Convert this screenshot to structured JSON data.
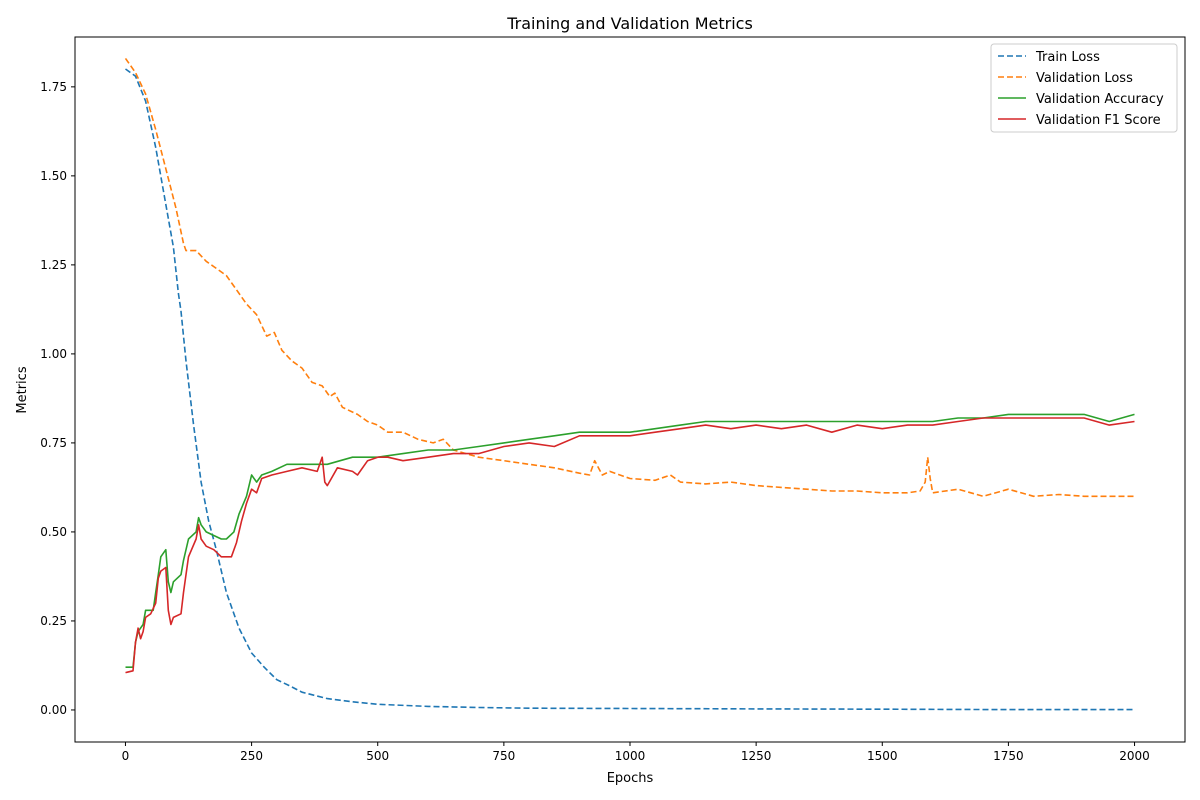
{
  "chart_data": {
    "type": "line",
    "title": "Training and Validation Metrics",
    "xlabel": "Epochs",
    "ylabel": "Metrics",
    "xlim": [
      -100,
      2100
    ],
    "ylim": [
      -0.09,
      1.89
    ],
    "x_ticks": [
      0,
      250,
      500,
      750,
      1000,
      1250,
      1500,
      1750,
      2000
    ],
    "x_tick_labels": [
      "0",
      "250",
      "500",
      "750",
      "1000",
      "1250",
      "1500",
      "1750",
      "2000"
    ],
    "y_ticks": [
      0.0,
      0.25,
      0.5,
      0.75,
      1.0,
      1.25,
      1.5,
      1.75
    ],
    "y_tick_labels": [
      "0.00",
      "0.25",
      "0.50",
      "0.75",
      "1.00",
      "1.25",
      "1.50",
      "1.75"
    ],
    "grid": false,
    "legend_position": "top-right",
    "series": [
      {
        "name": "Train Loss",
        "color": "#1f77b4",
        "dash": "dashed",
        "points": [
          [
            0,
            1.8
          ],
          [
            20,
            1.78
          ],
          [
            40,
            1.71
          ],
          [
            60,
            1.58
          ],
          [
            80,
            1.42
          ],
          [
            95,
            1.3
          ],
          [
            105,
            1.17
          ],
          [
            110,
            1.12
          ],
          [
            120,
            0.98
          ],
          [
            135,
            0.8
          ],
          [
            150,
            0.64
          ],
          [
            165,
            0.53
          ],
          [
            180,
            0.45
          ],
          [
            200,
            0.33
          ],
          [
            225,
            0.23
          ],
          [
            250,
            0.16
          ],
          [
            275,
            0.12
          ],
          [
            300,
            0.085
          ],
          [
            325,
            0.068
          ],
          [
            350,
            0.05
          ],
          [
            400,
            0.032
          ],
          [
            450,
            0.023
          ],
          [
            500,
            0.016
          ],
          [
            600,
            0.01
          ],
          [
            700,
            0.007
          ],
          [
            800,
            0.005
          ],
          [
            1000,
            0.004
          ],
          [
            1250,
            0.003
          ],
          [
            1500,
            0.002
          ],
          [
            1750,
            0.001
          ],
          [
            2000,
            0.001
          ]
        ]
      },
      {
        "name": "Validation Loss",
        "color": "#ff7f0e",
        "dash": "dashed",
        "points": [
          [
            0,
            1.83
          ],
          [
            20,
            1.79
          ],
          [
            40,
            1.73
          ],
          [
            60,
            1.63
          ],
          [
            80,
            1.52
          ],
          [
            100,
            1.41
          ],
          [
            115,
            1.31
          ],
          [
            120,
            1.29
          ],
          [
            140,
            1.29
          ],
          [
            160,
            1.26
          ],
          [
            180,
            1.24
          ],
          [
            200,
            1.22
          ],
          [
            220,
            1.18
          ],
          [
            240,
            1.14
          ],
          [
            260,
            1.11
          ],
          [
            280,
            1.05
          ],
          [
            295,
            1.06
          ],
          [
            310,
            1.01
          ],
          [
            330,
            0.98
          ],
          [
            350,
            0.96
          ],
          [
            370,
            0.92
          ],
          [
            390,
            0.91
          ],
          [
            405,
            0.88
          ],
          [
            415,
            0.89
          ],
          [
            430,
            0.85
          ],
          [
            460,
            0.83
          ],
          [
            480,
            0.81
          ],
          [
            500,
            0.8
          ],
          [
            520,
            0.78
          ],
          [
            550,
            0.78
          ],
          [
            580,
            0.76
          ],
          [
            610,
            0.75
          ],
          [
            630,
            0.76
          ],
          [
            650,
            0.73
          ],
          [
            700,
            0.71
          ],
          [
            750,
            0.7
          ],
          [
            800,
            0.69
          ],
          [
            850,
            0.68
          ],
          [
            900,
            0.665
          ],
          [
            920,
            0.66
          ],
          [
            930,
            0.7
          ],
          [
            945,
            0.66
          ],
          [
            960,
            0.67
          ],
          [
            1000,
            0.65
          ],
          [
            1050,
            0.645
          ],
          [
            1080,
            0.66
          ],
          [
            1100,
            0.64
          ],
          [
            1150,
            0.635
          ],
          [
            1200,
            0.64
          ],
          [
            1250,
            0.63
          ],
          [
            1300,
            0.625
          ],
          [
            1350,
            0.62
          ],
          [
            1400,
            0.615
          ],
          [
            1450,
            0.615
          ],
          [
            1500,
            0.61
          ],
          [
            1550,
            0.61
          ],
          [
            1575,
            0.615
          ],
          [
            1585,
            0.64
          ],
          [
            1590,
            0.71
          ],
          [
            1595,
            0.65
          ],
          [
            1600,
            0.61
          ],
          [
            1650,
            0.62
          ],
          [
            1700,
            0.6
          ],
          [
            1750,
            0.62
          ],
          [
            1800,
            0.6
          ],
          [
            1850,
            0.605
          ],
          [
            1900,
            0.6
          ],
          [
            1950,
            0.6
          ],
          [
            2000,
            0.6
          ]
        ]
      },
      {
        "name": "Validation Accuracy",
        "color": "#2ca02c",
        "dash": "solid",
        "points": [
          [
            0,
            0.12
          ],
          [
            15,
            0.12
          ],
          [
            20,
            0.19
          ],
          [
            25,
            0.22
          ],
          [
            35,
            0.24
          ],
          [
            40,
            0.28
          ],
          [
            55,
            0.28
          ],
          [
            60,
            0.33
          ],
          [
            65,
            0.38
          ],
          [
            70,
            0.43
          ],
          [
            80,
            0.45
          ],
          [
            85,
            0.36
          ],
          [
            90,
            0.33
          ],
          [
            95,
            0.36
          ],
          [
            110,
            0.38
          ],
          [
            115,
            0.42
          ],
          [
            125,
            0.48
          ],
          [
            140,
            0.5
          ],
          [
            145,
            0.54
          ],
          [
            150,
            0.52
          ],
          [
            160,
            0.5
          ],
          [
            175,
            0.49
          ],
          [
            190,
            0.48
          ],
          [
            200,
            0.48
          ],
          [
            215,
            0.5
          ],
          [
            225,
            0.55
          ],
          [
            240,
            0.6
          ],
          [
            250,
            0.66
          ],
          [
            260,
            0.64
          ],
          [
            270,
            0.66
          ],
          [
            290,
            0.67
          ],
          [
            320,
            0.69
          ],
          [
            350,
            0.69
          ],
          [
            400,
            0.69
          ],
          [
            450,
            0.71
          ],
          [
            500,
            0.71
          ],
          [
            550,
            0.72
          ],
          [
            600,
            0.73
          ],
          [
            650,
            0.73
          ],
          [
            700,
            0.74
          ],
          [
            750,
            0.75
          ],
          [
            800,
            0.76
          ],
          [
            850,
            0.77
          ],
          [
            900,
            0.78
          ],
          [
            950,
            0.78
          ],
          [
            1000,
            0.78
          ],
          [
            1050,
            0.79
          ],
          [
            1100,
            0.8
          ],
          [
            1150,
            0.81
          ],
          [
            1200,
            0.81
          ],
          [
            1250,
            0.81
          ],
          [
            1300,
            0.81
          ],
          [
            1350,
            0.81
          ],
          [
            1400,
            0.81
          ],
          [
            1450,
            0.81
          ],
          [
            1500,
            0.81
          ],
          [
            1550,
            0.81
          ],
          [
            1600,
            0.81
          ],
          [
            1650,
            0.82
          ],
          [
            1700,
            0.82
          ],
          [
            1750,
            0.83
          ],
          [
            1800,
            0.83
          ],
          [
            1850,
            0.83
          ],
          [
            1900,
            0.83
          ],
          [
            1950,
            0.81
          ],
          [
            2000,
            0.83
          ]
        ]
      },
      {
        "name": "Validation F1 Score",
        "color": "#d62728",
        "dash": "solid",
        "points": [
          [
            0,
            0.105
          ],
          [
            15,
            0.11
          ],
          [
            20,
            0.19
          ],
          [
            25,
            0.23
          ],
          [
            30,
            0.2
          ],
          [
            35,
            0.22
          ],
          [
            40,
            0.26
          ],
          [
            50,
            0.27
          ],
          [
            60,
            0.3
          ],
          [
            65,
            0.37
          ],
          [
            70,
            0.39
          ],
          [
            80,
            0.4
          ],
          [
            85,
            0.28
          ],
          [
            90,
            0.24
          ],
          [
            95,
            0.26
          ],
          [
            110,
            0.27
          ],
          [
            115,
            0.33
          ],
          [
            125,
            0.43
          ],
          [
            140,
            0.48
          ],
          [
            145,
            0.52
          ],
          [
            150,
            0.48
          ],
          [
            160,
            0.46
          ],
          [
            175,
            0.45
          ],
          [
            190,
            0.43
          ],
          [
            210,
            0.43
          ],
          [
            220,
            0.47
          ],
          [
            230,
            0.53
          ],
          [
            240,
            0.58
          ],
          [
            250,
            0.62
          ],
          [
            260,
            0.61
          ],
          [
            270,
            0.65
          ],
          [
            290,
            0.66
          ],
          [
            320,
            0.67
          ],
          [
            350,
            0.68
          ],
          [
            380,
            0.67
          ],
          [
            390,
            0.71
          ],
          [
            395,
            0.64
          ],
          [
            400,
            0.63
          ],
          [
            420,
            0.68
          ],
          [
            450,
            0.67
          ],
          [
            460,
            0.66
          ],
          [
            480,
            0.7
          ],
          [
            500,
            0.71
          ],
          [
            520,
            0.71
          ],
          [
            550,
            0.7
          ],
          [
            600,
            0.71
          ],
          [
            650,
            0.72
          ],
          [
            700,
            0.72
          ],
          [
            750,
            0.74
          ],
          [
            800,
            0.75
          ],
          [
            850,
            0.74
          ],
          [
            900,
            0.77
          ],
          [
            950,
            0.77
          ],
          [
            1000,
            0.77
          ],
          [
            1050,
            0.78
          ],
          [
            1100,
            0.79
          ],
          [
            1150,
            0.8
          ],
          [
            1200,
            0.79
          ],
          [
            1250,
            0.8
          ],
          [
            1300,
            0.79
          ],
          [
            1350,
            0.8
          ],
          [
            1400,
            0.78
          ],
          [
            1450,
            0.8
          ],
          [
            1500,
            0.79
          ],
          [
            1550,
            0.8
          ],
          [
            1600,
            0.8
          ],
          [
            1650,
            0.81
          ],
          [
            1700,
            0.82
          ],
          [
            1750,
            0.82
          ],
          [
            1800,
            0.82
          ],
          [
            1850,
            0.82
          ],
          [
            1900,
            0.82
          ],
          [
            1950,
            0.8
          ],
          [
            2000,
            0.81
          ]
        ]
      }
    ]
  }
}
